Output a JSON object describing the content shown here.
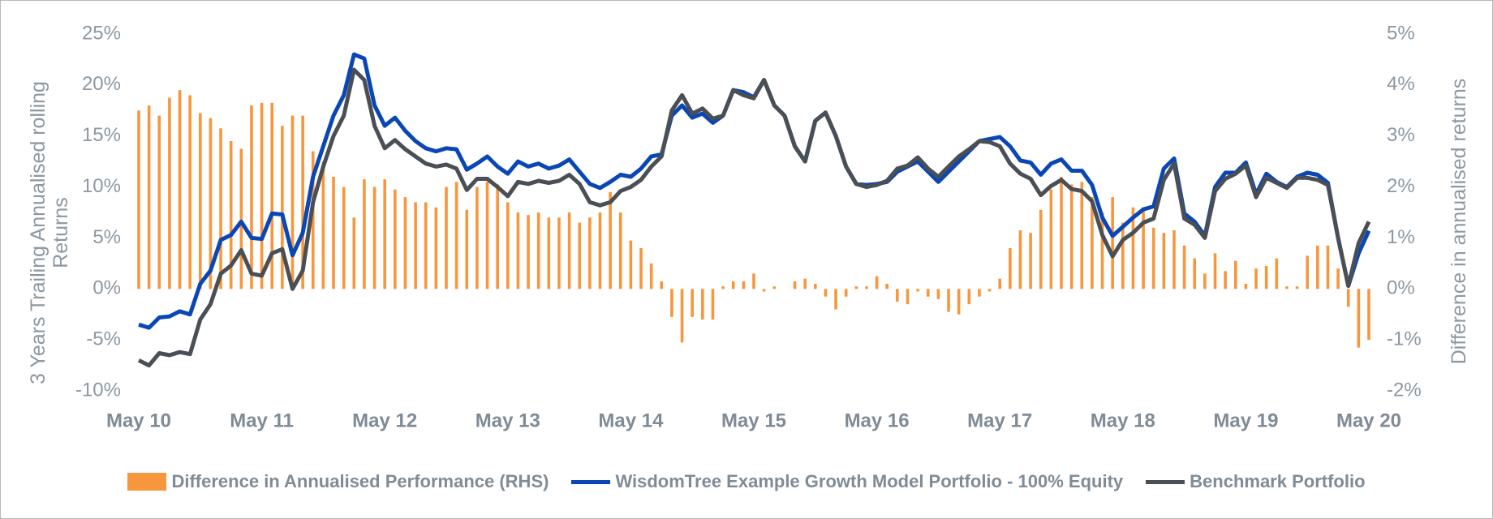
{
  "chart_data": {
    "type": "combo",
    "categories": [
      "May 10",
      null,
      null,
      null,
      null,
      null,
      null,
      null,
      null,
      null,
      null,
      null,
      "May 11",
      null,
      null,
      null,
      null,
      null,
      null,
      null,
      null,
      null,
      null,
      null,
      "May 12",
      null,
      null,
      null,
      null,
      null,
      null,
      null,
      null,
      null,
      null,
      null,
      "May 13",
      null,
      null,
      null,
      null,
      null,
      null,
      null,
      null,
      null,
      null,
      null,
      "May 14",
      null,
      null,
      null,
      null,
      null,
      null,
      null,
      null,
      null,
      null,
      null,
      "May 15",
      null,
      null,
      null,
      null,
      null,
      null,
      null,
      null,
      null,
      null,
      null,
      "May 16",
      null,
      null,
      null,
      null,
      null,
      null,
      null,
      null,
      null,
      null,
      null,
      "May 17",
      null,
      null,
      null,
      null,
      null,
      null,
      null,
      null,
      null,
      null,
      null,
      "May 18",
      null,
      null,
      null,
      null,
      null,
      null,
      null,
      null,
      null,
      null,
      null,
      "May 19",
      null,
      null,
      null,
      null,
      null,
      null,
      null,
      null,
      null,
      null,
      null,
      "May 20"
    ],
    "series": [
      {
        "name": "Difference in Annualised Performance (RHS)",
        "type": "bar",
        "axis": "y2",
        "color": "#f7963d",
        "values": [
          3.5,
          3.6,
          3.4,
          3.75,
          3.9,
          3.8,
          3.45,
          3.35,
          3.15,
          2.9,
          2.75,
          3.6,
          3.65,
          3.65,
          3.2,
          3.4,
          3.4,
          2.7,
          2.5,
          2.2,
          2.0,
          1.4,
          2.15,
          2.0,
          2.15,
          1.95,
          1.8,
          1.7,
          1.7,
          1.6,
          2.0,
          2.1,
          1.55,
          2.0,
          2.1,
          2.05,
          1.7,
          1.5,
          1.45,
          1.5,
          1.4,
          1.4,
          1.5,
          1.3,
          1.4,
          1.5,
          1.9,
          1.5,
          0.95,
          0.8,
          0.5,
          0.15,
          -0.55,
          -1.05,
          -0.55,
          -0.6,
          -0.6,
          0.05,
          0.15,
          0.15,
          0.3,
          -0.05,
          0.05,
          0,
          0.15,
          0.2,
          0.1,
          -0.15,
          -0.4,
          -0.15,
          0.05,
          0.05,
          0.25,
          0.1,
          -0.25,
          -0.3,
          -0.05,
          -0.15,
          -0.2,
          -0.45,
          -0.5,
          -0.3,
          -0.15,
          -0.05,
          0.2,
          0.8,
          1.15,
          1.1,
          1.55,
          1.95,
          2.2,
          2.05,
          2.1,
          1.8,
          1.5,
          1.8,
          1.3,
          1.6,
          1.6,
          1.2,
          1.1,
          1.15,
          0.85,
          0.6,
          0.3,
          0.7,
          0.35,
          0.55,
          0.1,
          0.4,
          0.45,
          0.6,
          0.05,
          0.05,
          0.65,
          0.85,
          0.85,
          0.4,
          -0.35,
          -1.15,
          -1.0
        ]
      },
      {
        "name": "WisdomTree Example Growth Model Portfolio - 100% Equity",
        "type": "line",
        "axis": "y",
        "color": "#0a47b5",
        "values": [
          -3.5,
          -3.8,
          -2.8,
          -2.7,
          -2.2,
          -2.5,
          0.5,
          1.8,
          4.8,
          5.3,
          6.6,
          5.0,
          4.9,
          7.4,
          7.3,
          3.3,
          5.5,
          11,
          14,
          17,
          19,
          23,
          22.6,
          18,
          16,
          16.8,
          15.5,
          14.5,
          13.8,
          13.5,
          13.8,
          13.7,
          11.7,
          12.3,
          13,
          12,
          11.3,
          12.5,
          12,
          12.3,
          11.8,
          12.1,
          12.7,
          11.5,
          10.3,
          9.9,
          10.5,
          11.2,
          11,
          11.8,
          13,
          13.2,
          17,
          18,
          16.8,
          17.2,
          16.3,
          17,
          19.5,
          19.3,
          18.8,
          20.5,
          18,
          17,
          14,
          12.5,
          16.5,
          17.3,
          15,
          12,
          10.3,
          10.2,
          10.3,
          10.5,
          11.5,
          12,
          12.5,
          11.5,
          10.5,
          11.5,
          12.5,
          13.5,
          14.5,
          14.7,
          14.9,
          14,
          12.6,
          12.4,
          11.2,
          12.3,
          12.7,
          11.6,
          11.6,
          10.2,
          7,
          5.2,
          6.1,
          7,
          7.8,
          8.1,
          11.8,
          12.8,
          7.4,
          6.6,
          5.2,
          10,
          11.4,
          11.4,
          12.4,
          9.3,
          11.3,
          10.5,
          10,
          11,
          11.4,
          11.2,
          10.4,
          5,
          0.3,
          3.5,
          5.7
        ]
      },
      {
        "name": "Benchmark Portfolio",
        "type": "line",
        "axis": "y",
        "color": "#4a4f55",
        "values": [
          -7,
          -7.5,
          -6.3,
          -6.5,
          -6.2,
          -6.4,
          -3,
          -1.5,
          1.5,
          2.3,
          3.8,
          1.5,
          1.3,
          3.5,
          3.9,
          0,
          1.8,
          8.5,
          12,
          15,
          17,
          21.5,
          20.5,
          16,
          13.8,
          14.6,
          13.7,
          13,
          12.3,
          12,
          12.2,
          11.8,
          9.7,
          10.8,
          10.8,
          10,
          9.1,
          10.5,
          10.3,
          10.6,
          10.4,
          10.6,
          11.2,
          10.3,
          8.5,
          8.2,
          8.5,
          9.6,
          10,
          10.7,
          12,
          13,
          17.5,
          19,
          17.2,
          17.7,
          16.7,
          17,
          19.5,
          19,
          18.7,
          20.5,
          18,
          17,
          14,
          12.5,
          16.5,
          17.3,
          15,
          12,
          10.3,
          10,
          10.2,
          10.6,
          11.8,
          12.1,
          12.9,
          11.8,
          11,
          12,
          13,
          13.7,
          14.5,
          14.4,
          14,
          12.3,
          11.3,
          10.8,
          9.2,
          10.1,
          10.7,
          9.8,
          9.6,
          8.6,
          5.3,
          3.2,
          4.8,
          5.5,
          6.5,
          6.9,
          10.7,
          12.3,
          6.9,
          6.3,
          5,
          9.6,
          10.8,
          11.3,
          12.1,
          9,
          10.9,
          10.4,
          9.9,
          10.9,
          10.9,
          10.7,
          10.2,
          5,
          0.3,
          4.5,
          6.6
        ]
      }
    ],
    "ylabel": "3 Years Trailing Annualised rolling Returns",
    "y2label": "Difference in annualised returns",
    "ylim": [
      -10,
      25
    ],
    "yticks": [
      {
        "value": -10,
        "label": "-10%"
      },
      {
        "value": -5,
        "label": "-5%"
      },
      {
        "value": 0,
        "label": "0%"
      },
      {
        "value": 5,
        "label": "5%"
      },
      {
        "value": 10,
        "label": "10%"
      },
      {
        "value": 15,
        "label": "15%"
      },
      {
        "value": 20,
        "label": "20%"
      },
      {
        "value": 25,
        "label": "25%"
      }
    ],
    "y2lim": [
      -2,
      5
    ],
    "y2ticks": [
      {
        "value": -2,
        "label": "-2%"
      },
      {
        "value": -1,
        "label": "-1%"
      },
      {
        "value": 0,
        "label": "0%"
      },
      {
        "value": 1,
        "label": "1%"
      },
      {
        "value": 2,
        "label": "2%"
      },
      {
        "value": 3,
        "label": "3%"
      },
      {
        "value": 4,
        "label": "4%"
      },
      {
        "value": 5,
        "label": "5%"
      }
    ],
    "grid": false,
    "legend": "bottom"
  }
}
